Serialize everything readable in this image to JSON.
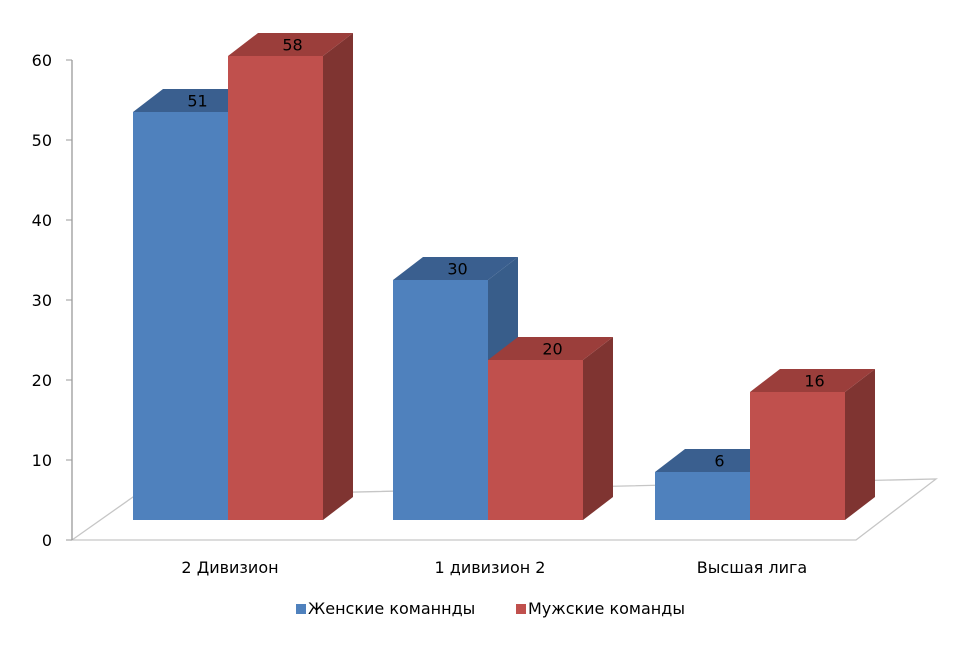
{
  "chart_data": {
    "type": "bar",
    "title": "",
    "xlabel": "",
    "ylabel": "",
    "ylim": [
      0,
      60
    ],
    "yticks": [
      0,
      10,
      20,
      30,
      40,
      50,
      60
    ],
    "ytick_labels": [
      "0",
      "10",
      "20",
      "30",
      "40",
      "50",
      "60"
    ],
    "categories": [
      "2 Дивизион",
      "1 дивизион 2",
      "Высшая лига"
    ],
    "series": [
      {
        "name": "Женские команнды",
        "values": [
          51,
          30,
          6
        ],
        "value_labels": [
          "51",
          "30",
          "6"
        ],
        "color": "#4F81BD",
        "side_color": "#385D8A",
        "top_color": "#3A5F8F"
      },
      {
        "name": "Мужские команды",
        "values": [
          58,
          20,
          16
        ],
        "value_labels": [
          "58",
          "20",
          "16"
        ],
        "color": "#C0504D",
        "side_color": "#7F3431",
        "top_color": "#9B3E3B"
      }
    ],
    "grid": false,
    "legend_position": "bottom",
    "style": "3d-clustered-bar"
  }
}
